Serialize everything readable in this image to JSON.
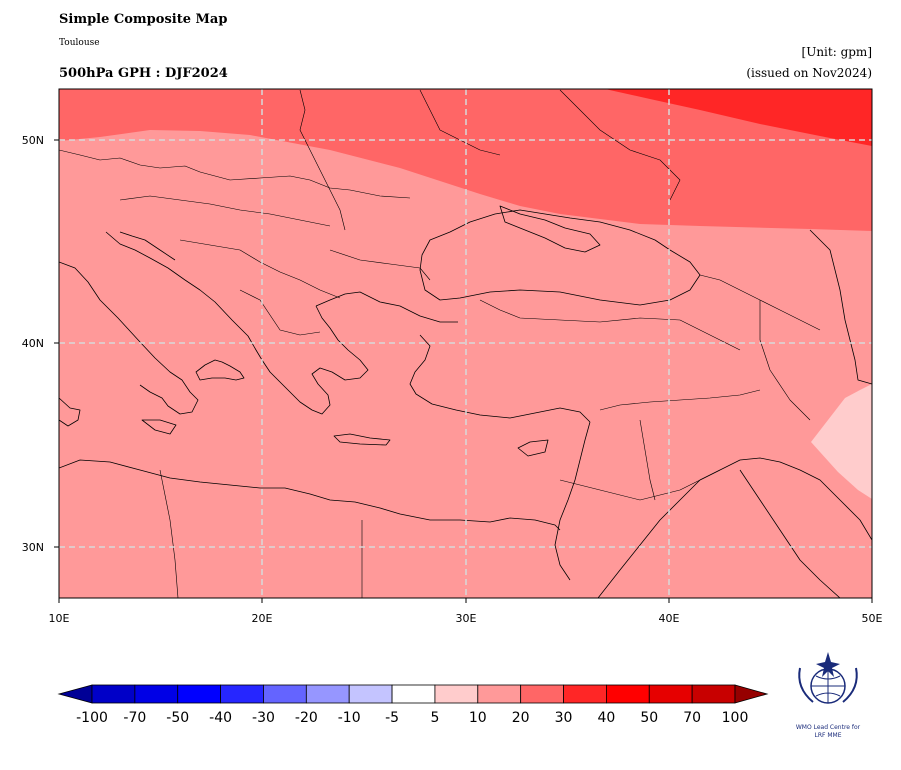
{
  "header": {
    "title": "Simple Composite Map",
    "subtitle": "Toulouse",
    "field": "500hPa GPH : DJF2024",
    "unit": "[Unit: gpm]",
    "issued": "(issued on Nov2024)"
  },
  "map": {
    "lon_ticks": [
      "10E",
      "20E",
      "30E",
      "40E",
      "50E"
    ],
    "lat_ticks": [
      "50N",
      "40N",
      "30N"
    ],
    "region": {
      "lon_range": [
        10,
        50
      ],
      "lat_range": [
        27.5,
        52.5
      ]
    },
    "grid": true,
    "anomaly_bands": [
      {
        "range": "5 to 10",
        "color": "#ffcccc",
        "area": "southeast (Iraq / Syria)"
      },
      {
        "range": "10 to 20",
        "color": "#ff9999",
        "area": "Mediterranean, Balkans, Turkey, Middle East"
      },
      {
        "range": "20 to 30",
        "color": "#ff6666",
        "area": "Central / Eastern Europe, Black Sea north"
      },
      {
        "range": "30 to 40",
        "color": "#ff2626",
        "area": "far northeast (Russia)"
      }
    ]
  },
  "colorbar": {
    "labels": [
      "-100",
      "-70",
      "-50",
      "-40",
      "-30",
      "-20",
      "-10",
      "-5",
      "5",
      "10",
      "20",
      "30",
      "40",
      "50",
      "70",
      "100"
    ],
    "colors": [
      "#0000c8",
      "#0000e6",
      "#0000ff",
      "#2626ff",
      "#6464ff",
      "#9696ff",
      "#c4c4ff",
      "#ffffff",
      "#ffcccc",
      "#ff9999",
      "#ff6666",
      "#ff2626",
      "#ff0000",
      "#e60000",
      "#c80000"
    ],
    "extend_low_color": "#000096",
    "extend_high_color": "#960000"
  },
  "logo": {
    "line1": "WMO Lead Centre for",
    "line2": "LRF MME"
  }
}
